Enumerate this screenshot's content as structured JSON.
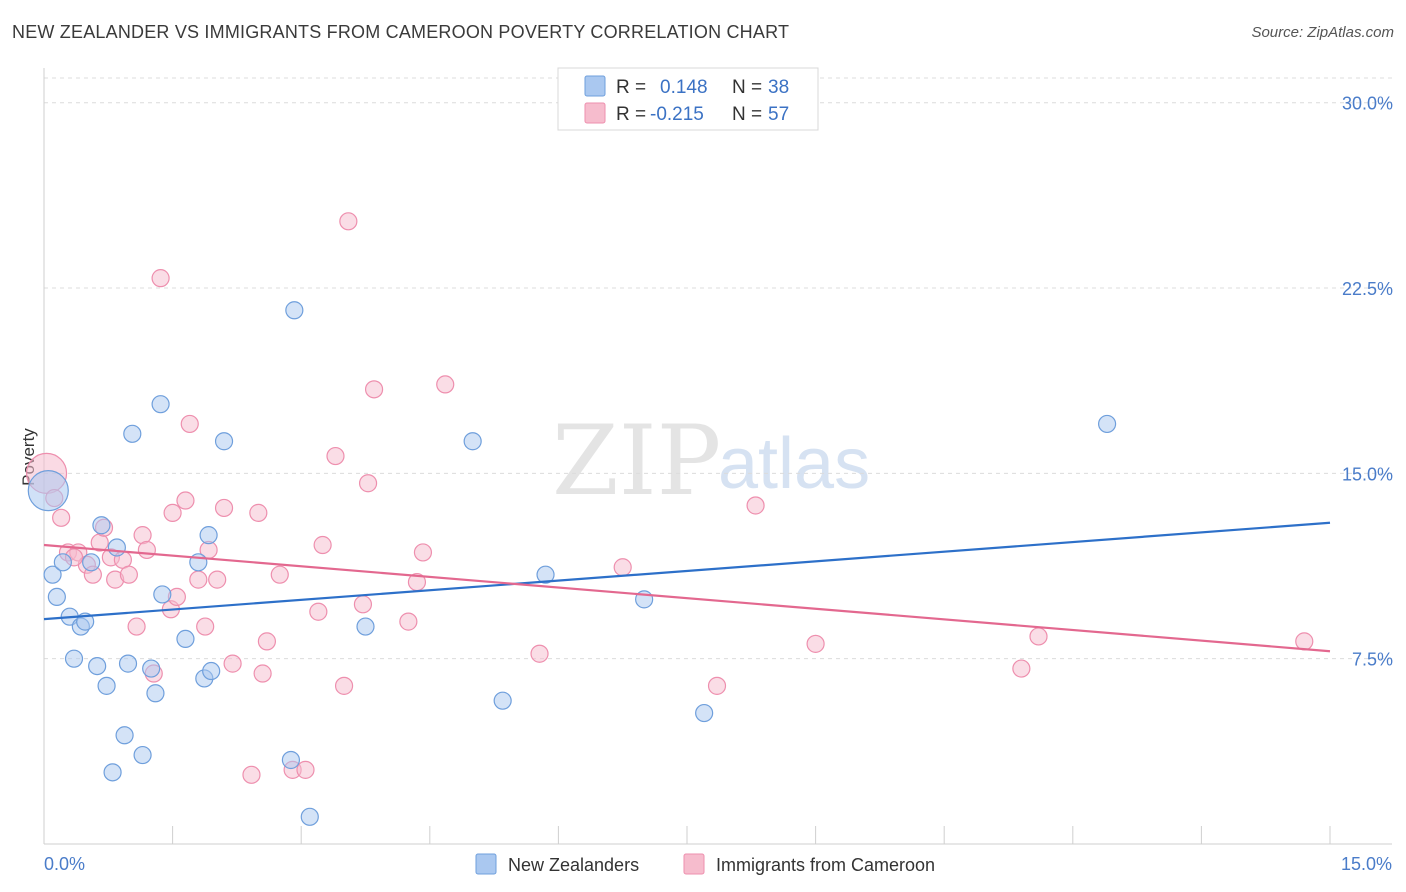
{
  "header": {
    "title": "NEW ZEALANDER VS IMMIGRANTS FROM CAMEROON POVERTY CORRELATION CHART",
    "source": "Source: ZipAtlas.com"
  },
  "watermark": {
    "zip": "ZIP",
    "atlas": "atlas"
  },
  "legend": {
    "rows": [
      {
        "r_label": "R = ",
        "r_value": "0.148",
        "n_label": "N = ",
        "n_value": "38"
      },
      {
        "r_label": "R = ",
        "r_value": "-0.215",
        "n_label": "N = ",
        "n_value": "57"
      }
    ]
  },
  "bottom_legend": {
    "series1": "New Zealanders",
    "series2": "Immigrants from Cameroon"
  },
  "colors": {
    "blue_fill": "#aac8f0",
    "blue_stroke": "#6f9fdc",
    "blue_line": "#2d70c9",
    "pink_fill": "#f6bccd",
    "pink_stroke": "#ee8fae",
    "pink_line": "#e3688f",
    "grid": "#dcdcdc",
    "tick_text": "#4a7cc9"
  },
  "chart_data": {
    "type": "scatter",
    "title": "NEW ZEALANDER VS IMMIGRANTS FROM CAMEROON POVERTY CORRELATION CHART",
    "xlabel": "",
    "ylabel": "Poverty",
    "xlim": [
      0,
      15
    ],
    "ylim": [
      0,
      31
    ],
    "x_tick_labels": [
      "0.0%",
      "15.0%"
    ],
    "y_ticks": [
      7.5,
      15.0,
      22.5,
      30.0
    ],
    "y_tick_labels": [
      "7.5%",
      "15.0%",
      "22.5%",
      "30.0%"
    ],
    "series": [
      {
        "name": "New Zealanders",
        "color": "#aac8f0",
        "trend": {
          "x": [
            0,
            15
          ],
          "y": [
            9.1,
            13.0
          ]
        },
        "points": [
          {
            "x": 0.05,
            "y": 14.3,
            "big": true
          },
          {
            "x": 0.1,
            "y": 10.9
          },
          {
            "x": 0.15,
            "y": 10.0
          },
          {
            "x": 0.22,
            "y": 11.4
          },
          {
            "x": 0.3,
            "y": 9.2
          },
          {
            "x": 0.35,
            "y": 7.5
          },
          {
            "x": 0.43,
            "y": 8.8
          },
          {
            "x": 0.48,
            "y": 9.0
          },
          {
            "x": 0.55,
            "y": 11.4
          },
          {
            "x": 0.62,
            "y": 7.2
          },
          {
            "x": 0.67,
            "y": 12.9
          },
          {
            "x": 0.73,
            "y": 6.4
          },
          {
            "x": 0.8,
            "y": 2.9
          },
          {
            "x": 0.85,
            "y": 12.0
          },
          {
            "x": 0.94,
            "y": 4.4
          },
          {
            "x": 0.98,
            "y": 7.3
          },
          {
            "x": 1.03,
            "y": 16.6
          },
          {
            "x": 1.15,
            "y": 3.6
          },
          {
            "x": 1.25,
            "y": 7.1
          },
          {
            "x": 1.3,
            "y": 6.1
          },
          {
            "x": 1.36,
            "y": 17.8
          },
          {
            "x": 1.38,
            "y": 10.1
          },
          {
            "x": 1.65,
            "y": 8.3
          },
          {
            "x": 1.8,
            "y": 11.4
          },
          {
            "x": 1.87,
            "y": 6.7
          },
          {
            "x": 1.92,
            "y": 12.5
          },
          {
            "x": 1.95,
            "y": 7.0
          },
          {
            "x": 2.1,
            "y": 16.3
          },
          {
            "x": 2.88,
            "y": 3.4
          },
          {
            "x": 2.92,
            "y": 21.6
          },
          {
            "x": 3.1,
            "y": 1.1
          },
          {
            "x": 3.75,
            "y": 8.8
          },
          {
            "x": 5.0,
            "y": 16.3
          },
          {
            "x": 5.35,
            "y": 5.8
          },
          {
            "x": 5.85,
            "y": 10.9
          },
          {
            "x": 7.0,
            "y": 9.9
          },
          {
            "x": 7.7,
            "y": 5.3
          },
          {
            "x": 12.4,
            "y": 17.0
          }
        ]
      },
      {
        "name": "Immigrants from Cameroon",
        "color": "#f6bccd",
        "trend": {
          "x": [
            0,
            15
          ],
          "y": [
            12.1,
            7.8
          ]
        },
        "points": [
          {
            "x": 0.03,
            "y": 15.0,
            "big": true
          },
          {
            "x": 0.12,
            "y": 14.0
          },
          {
            "x": 0.2,
            "y": 13.2
          },
          {
            "x": 0.28,
            "y": 11.8
          },
          {
            "x": 0.4,
            "y": 11.8
          },
          {
            "x": 0.5,
            "y": 11.3
          },
          {
            "x": 0.57,
            "y": 10.9
          },
          {
            "x": 0.65,
            "y": 12.2
          },
          {
            "x": 0.7,
            "y": 12.8
          },
          {
            "x": 0.78,
            "y": 11.6
          },
          {
            "x": 0.83,
            "y": 10.7
          },
          {
            "x": 0.92,
            "y": 11.5
          },
          {
            "x": 0.99,
            "y": 10.9
          },
          {
            "x": 1.08,
            "y": 8.8
          },
          {
            "x": 1.15,
            "y": 12.5
          },
          {
            "x": 1.2,
            "y": 11.9
          },
          {
            "x": 1.28,
            "y": 6.9
          },
          {
            "x": 1.48,
            "y": 9.5
          },
          {
            "x": 1.5,
            "y": 13.4
          },
          {
            "x": 1.55,
            "y": 10.0
          },
          {
            "x": 1.65,
            "y": 13.9
          },
          {
            "x": 1.7,
            "y": 17.0
          },
          {
            "x": 1.8,
            "y": 10.7
          },
          {
            "x": 1.88,
            "y": 8.8
          },
          {
            "x": 1.92,
            "y": 11.9
          },
          {
            "x": 2.02,
            "y": 10.7
          },
          {
            "x": 2.1,
            "y": 13.6
          },
          {
            "x": 2.2,
            "y": 7.3
          },
          {
            "x": 2.42,
            "y": 2.8
          },
          {
            "x": 2.5,
            "y": 13.4
          },
          {
            "x": 2.55,
            "y": 6.9
          },
          {
            "x": 2.6,
            "y": 8.2
          },
          {
            "x": 2.75,
            "y": 10.9
          },
          {
            "x": 2.9,
            "y": 3.0
          },
          {
            "x": 3.05,
            "y": 3.0
          },
          {
            "x": 3.2,
            "y": 9.4
          },
          {
            "x": 3.25,
            "y": 12.1
          },
          {
            "x": 3.4,
            "y": 15.7
          },
          {
            "x": 3.5,
            "y": 6.4
          },
          {
            "x": 3.55,
            "y": 25.2
          },
          {
            "x": 3.72,
            "y": 9.7
          },
          {
            "x": 3.78,
            "y": 14.6
          },
          {
            "x": 3.85,
            "y": 18.4
          },
          {
            "x": 4.25,
            "y": 9.0
          },
          {
            "x": 4.35,
            "y": 10.6
          },
          {
            "x": 4.42,
            "y": 11.8
          },
          {
            "x": 4.68,
            "y": 18.6
          },
          {
            "x": 5.78,
            "y": 7.7
          },
          {
            "x": 6.75,
            "y": 11.2
          },
          {
            "x": 7.85,
            "y": 6.4
          },
          {
            "x": 8.3,
            "y": 13.7
          },
          {
            "x": 9.0,
            "y": 8.1
          },
          {
            "x": 11.4,
            "y": 7.1
          },
          {
            "x": 11.6,
            "y": 8.4
          },
          {
            "x": 14.7,
            "y": 8.2
          },
          {
            "x": 1.36,
            "y": 22.9
          },
          {
            "x": 0.35,
            "y": 11.6
          }
        ]
      }
    ]
  }
}
